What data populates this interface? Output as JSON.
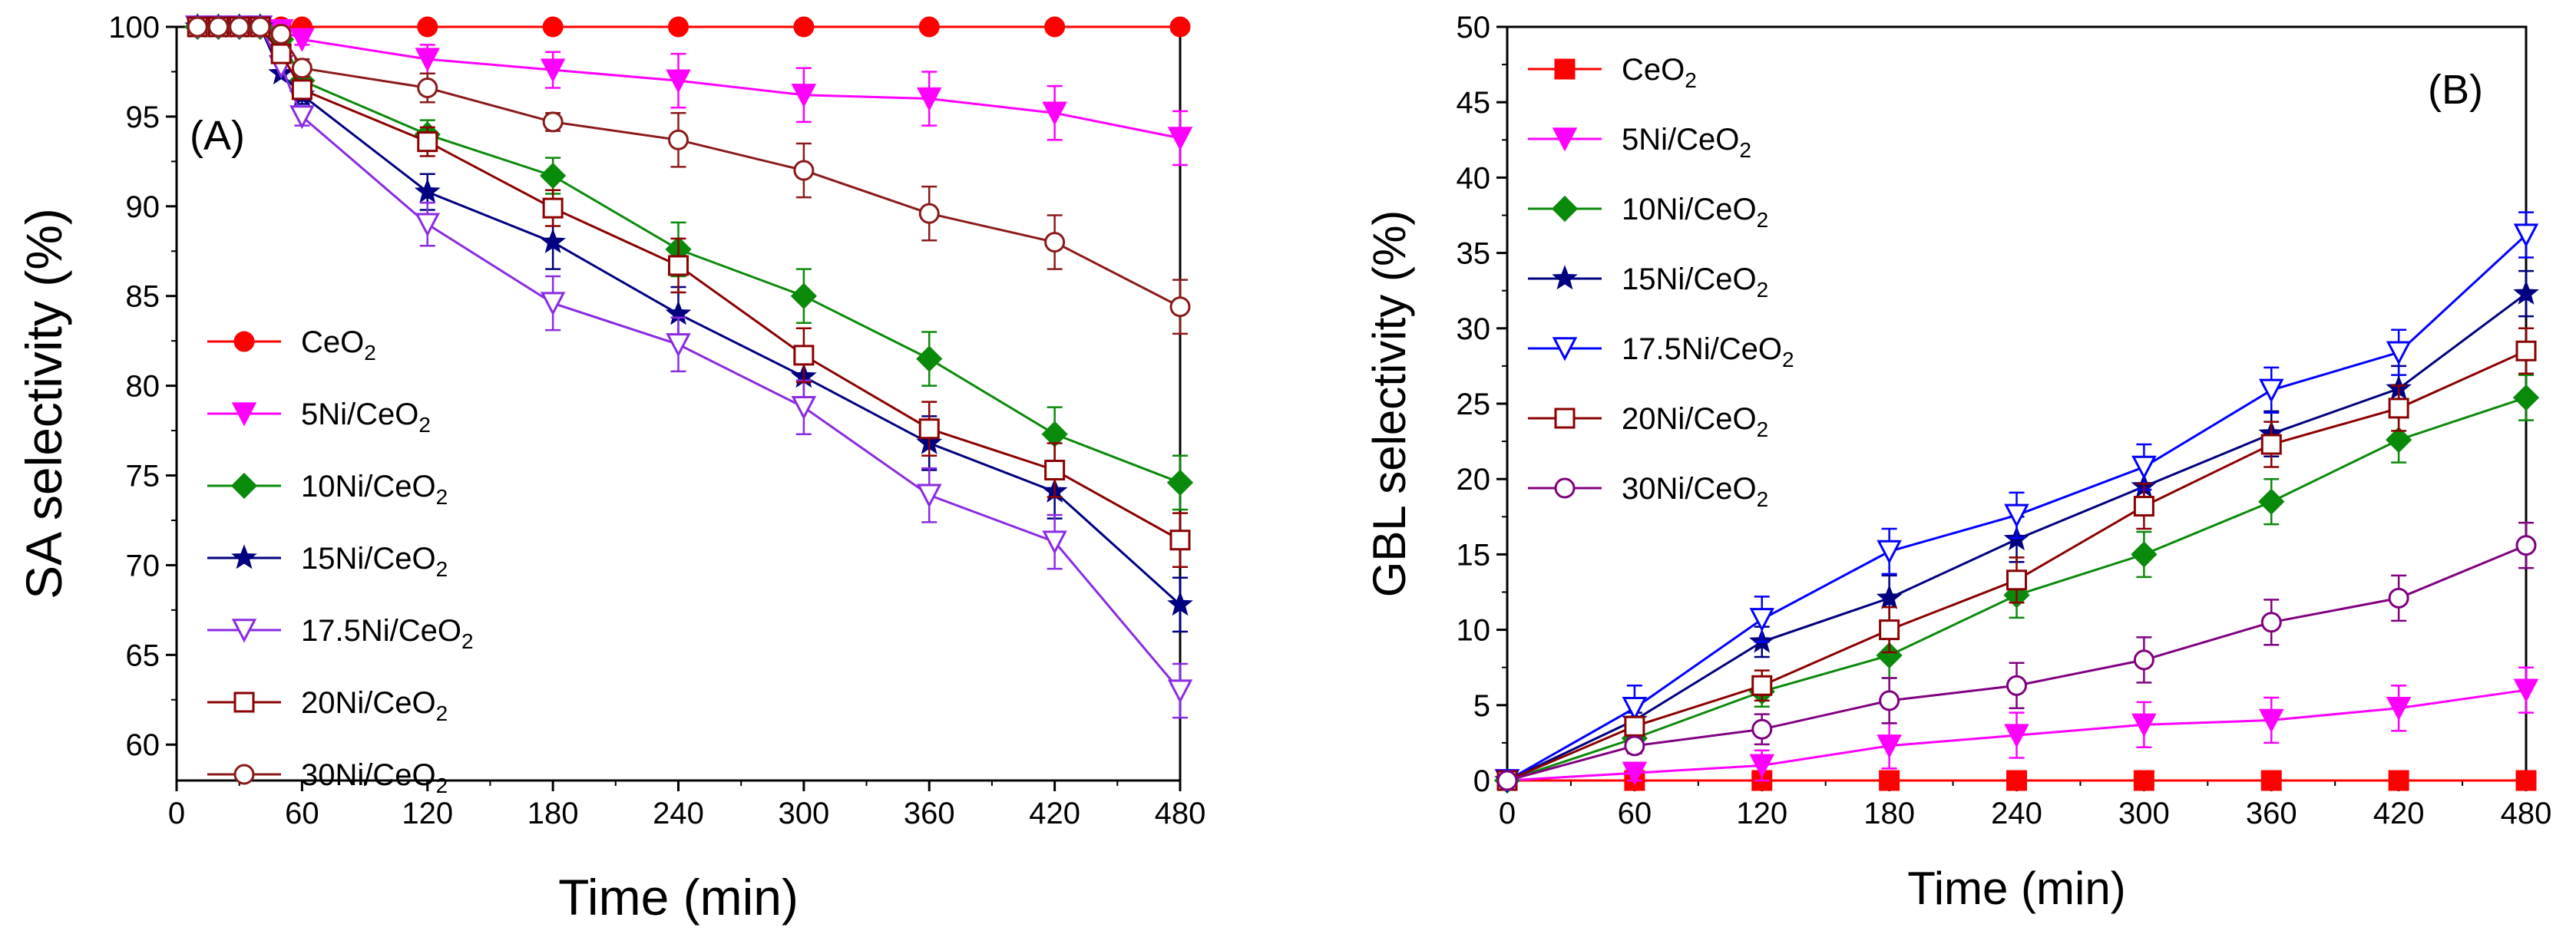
{
  "chart_data": [
    {
      "type": "line",
      "panel_label": "(A)",
      "title": "",
      "xlabel": "Time (min)",
      "ylabel": "SA selectivity (%)",
      "xlim": [
        0,
        480
      ],
      "ylim": [
        58,
        100
      ],
      "xticks": [
        0,
        60,
        120,
        180,
        240,
        300,
        360,
        420,
        480
      ],
      "yticks": [
        60,
        65,
        70,
        75,
        80,
        85,
        90,
        95,
        100
      ],
      "grid": false,
      "legend_position": "left",
      "series": [
        {
          "name": "CeO2",
          "label_main": "CeO",
          "label_sub": "2",
          "color": "#ff0000",
          "marker": "circle",
          "filled": true,
          "x": [
            10,
            20,
            30,
            40,
            50,
            60,
            120,
            180,
            240,
            300,
            360,
            420,
            480
          ],
          "y": [
            100,
            100,
            100,
            100,
            100,
            100,
            100,
            100,
            100,
            100,
            100,
            100,
            100
          ],
          "err": [
            0,
            0,
            0,
            0,
            0,
            0,
            0,
            0,
            0,
            0,
            0,
            0,
            0
          ]
        },
        {
          "name": "5Ni/CeO2",
          "label_main": "5Ni/CeO",
          "label_sub": "2",
          "color": "#ff00ff",
          "marker": "triangle-down",
          "filled": true,
          "x": [
            10,
            20,
            30,
            40,
            50,
            60,
            120,
            180,
            240,
            300,
            360,
            420,
            480
          ],
          "y": [
            100,
            100,
            100,
            100,
            99.8,
            99.3,
            98.2,
            97.6,
            97.0,
            96.2,
            96.0,
            95.2,
            93.8
          ],
          "err": [
            0,
            0,
            0,
            0,
            0,
            0.3,
            0.8,
            1.0,
            1.5,
            1.5,
            1.5,
            1.5,
            1.5
          ]
        },
        {
          "name": "10Ni/CeO2",
          "label_main": "10Ni/CeO",
          "label_sub": "2",
          "color": "#0a8a0a",
          "marker": "diamond",
          "filled": true,
          "x": [
            10,
            20,
            30,
            40,
            50,
            60,
            120,
            180,
            240,
            300,
            360,
            420,
            480
          ],
          "y": [
            100,
            100,
            100,
            100,
            99.3,
            97.0,
            94.0,
            91.7,
            87.6,
            85.0,
            81.5,
            77.3,
            74.6
          ],
          "err": [
            0,
            0,
            0,
            0,
            0,
            0.5,
            0.8,
            1.0,
            1.5,
            1.5,
            1.5,
            1.5,
            1.5
          ]
        },
        {
          "name": "15Ni/CeO2",
          "label_main": "15Ni/CeO",
          "label_sub": "2",
          "color": "#000080",
          "marker": "star",
          "filled": true,
          "x": [
            10,
            20,
            30,
            40,
            50,
            60,
            120,
            180,
            240,
            300,
            360,
            420,
            480
          ],
          "y": [
            100,
            100,
            100,
            100,
            97.4,
            96.2,
            90.8,
            88.0,
            84.0,
            80.5,
            76.8,
            74.1,
            67.8
          ],
          "err": [
            0,
            0,
            0,
            0,
            0,
            0.5,
            1.0,
            1.5,
            1.5,
            1.5,
            1.5,
            1.5,
            1.5
          ]
        },
        {
          "name": "17.5Ni/CeO2",
          "label_main": "17.5Ni/CeO",
          "label_sub": "2",
          "color": "#8a2be2",
          "marker": "triangle-down",
          "filled": false,
          "x": [
            10,
            20,
            30,
            40,
            50,
            60,
            120,
            180,
            240,
            300,
            360,
            420,
            480
          ],
          "y": [
            100,
            100,
            100,
            100,
            97.8,
            95.0,
            89.0,
            84.6,
            82.3,
            78.8,
            73.9,
            71.3,
            63.0
          ],
          "err": [
            0,
            0,
            0,
            0,
            0,
            0.5,
            1.2,
            1.5,
            1.5,
            1.5,
            1.5,
            1.5,
            1.5
          ]
        },
        {
          "name": "20Ni/CeO2",
          "label_main": "20Ni/CeO",
          "label_sub": "2",
          "color": "#8b0000",
          "marker": "square",
          "filled": false,
          "x": [
            10,
            20,
            30,
            40,
            50,
            60,
            120,
            180,
            240,
            300,
            360,
            420,
            480
          ],
          "y": [
            100,
            100,
            100,
            100,
            98.5,
            96.5,
            93.6,
            89.9,
            86.7,
            81.7,
            77.6,
            75.3,
            71.4
          ],
          "err": [
            0,
            0,
            0,
            0,
            0,
            0.5,
            0.8,
            1.0,
            1.5,
            1.5,
            1.5,
            1.5,
            1.5
          ]
        },
        {
          "name": "30Ni/CeO2",
          "label_main": "30Ni/CeO",
          "label_sub": "2",
          "color": "#8b1a1a",
          "marker": "circle",
          "filled": false,
          "x": [
            10,
            20,
            30,
            40,
            50,
            60,
            120,
            180,
            240,
            300,
            360,
            420,
            480
          ],
          "y": [
            100,
            100,
            100,
            100,
            99.6,
            97.7,
            96.6,
            94.7,
            93.7,
            92.0,
            89.6,
            88.0,
            84.4
          ],
          "err": [
            0,
            0,
            0,
            0,
            0,
            0.5,
            0.8,
            0.5,
            1.5,
            1.5,
            1.5,
            1.5,
            1.5
          ]
        }
      ]
    },
    {
      "type": "line",
      "panel_label": "(B)",
      "title": "",
      "xlabel": "Time (min)",
      "ylabel": "GBL selectivity (%)",
      "xlim": [
        0,
        480
      ],
      "ylim": [
        0,
        50
      ],
      "xticks": [
        0,
        60,
        120,
        180,
        240,
        300,
        360,
        420,
        480
      ],
      "yticks": [
        0,
        5,
        10,
        15,
        20,
        25,
        30,
        35,
        40,
        45,
        50
      ],
      "grid": false,
      "legend_position": "top-left",
      "series": [
        {
          "name": "CeO2",
          "label_main": "CeO",
          "label_sub": "2",
          "color": "#ff0000",
          "marker": "square",
          "filled": true,
          "x": [
            0,
            60,
            120,
            180,
            240,
            300,
            360,
            420,
            480
          ],
          "y": [
            0,
            0,
            0,
            0,
            0,
            0,
            0,
            0,
            0
          ],
          "err": [
            0,
            0,
            0,
            0,
            0,
            0,
            0,
            0,
            0
          ]
        },
        {
          "name": "5Ni/CeO2",
          "label_main": "5Ni/CeO",
          "label_sub": "2",
          "color": "#ff00ff",
          "marker": "triangle-down",
          "filled": true,
          "x": [
            0,
            60,
            120,
            180,
            240,
            300,
            360,
            420,
            480
          ],
          "y": [
            0,
            0.5,
            1.0,
            2.3,
            3.0,
            3.7,
            4.0,
            4.8,
            6.0
          ],
          "err": [
            0,
            0.5,
            1.0,
            1.5,
            1.5,
            1.5,
            1.5,
            1.5,
            1.5
          ]
        },
        {
          "name": "10Ni/CeO2",
          "label_main": "10Ni/CeO",
          "label_sub": "2",
          "color": "#0a8a0a",
          "marker": "diamond",
          "filled": true,
          "x": [
            0,
            60,
            120,
            180,
            240,
            300,
            360,
            420,
            480
          ],
          "y": [
            0,
            2.8,
            5.9,
            8.3,
            12.3,
            15.0,
            18.5,
            22.6,
            25.4
          ],
          "err": [
            0,
            0.5,
            1.0,
            1.5,
            1.5,
            1.5,
            1.5,
            1.5,
            1.5
          ]
        },
        {
          "name": "15Ni/CeO2",
          "label_main": "15Ni/CeO",
          "label_sub": "2",
          "color": "#000080",
          "marker": "star",
          "filled": true,
          "x": [
            0,
            60,
            120,
            180,
            240,
            300,
            360,
            420,
            480
          ],
          "y": [
            0,
            4.0,
            9.2,
            12.1,
            16.0,
            19.5,
            23.0,
            26.0,
            32.3
          ],
          "err": [
            0,
            0.5,
            1.0,
            1.5,
            1.5,
            1.5,
            1.5,
            1.5,
            1.5
          ]
        },
        {
          "name": "17.5Ni/CeO2",
          "label_main": "17.5Ni/CeO",
          "label_sub": "2",
          "color": "#0000ff",
          "marker": "triangle-down",
          "filled": false,
          "x": [
            0,
            60,
            120,
            180,
            240,
            300,
            360,
            420,
            480
          ],
          "y": [
            0,
            4.8,
            10.7,
            15.2,
            17.6,
            20.8,
            25.9,
            28.4,
            36.2
          ],
          "err": [
            0,
            1.5,
            1.5,
            1.5,
            1.5,
            1.5,
            1.5,
            1.5,
            1.5
          ]
        },
        {
          "name": "20Ni/CeO2",
          "label_main": "20Ni/CeO",
          "label_sub": "2",
          "color": "#8b0000",
          "marker": "square",
          "filled": false,
          "x": [
            0,
            60,
            120,
            180,
            240,
            300,
            360,
            420,
            480
          ],
          "y": [
            0,
            3.6,
            6.3,
            10.0,
            13.3,
            18.2,
            22.3,
            24.7,
            28.5
          ],
          "err": [
            0,
            0.5,
            1.0,
            1.5,
            1.5,
            1.5,
            1.5,
            1.5,
            1.5
          ]
        },
        {
          "name": "30Ni/CeO2",
          "label_main": "30Ni/CeO",
          "label_sub": "2",
          "color": "#800080",
          "marker": "circle",
          "filled": false,
          "x": [
            0,
            60,
            120,
            180,
            240,
            300,
            360,
            420,
            480
          ],
          "y": [
            0,
            2.3,
            3.4,
            5.3,
            6.3,
            8.0,
            10.5,
            12.1,
            15.6
          ],
          "err": [
            0,
            0.5,
            1.0,
            1.5,
            1.5,
            1.5,
            1.5,
            1.5,
            1.5
          ]
        }
      ]
    }
  ]
}
